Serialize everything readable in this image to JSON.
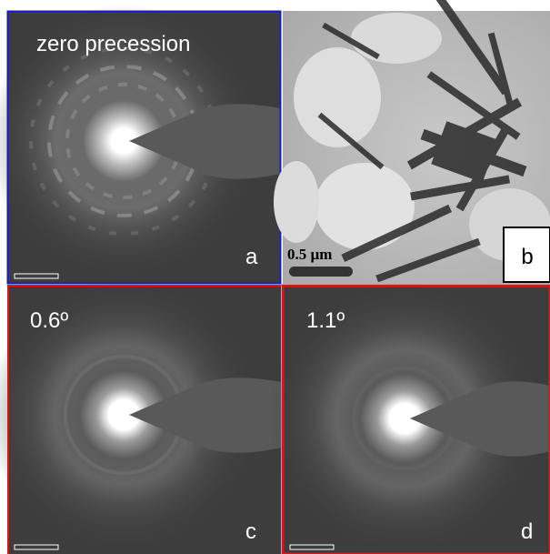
{
  "panels": [
    {
      "label": "a",
      "caption": "zero precession"
    },
    {
      "label": "b",
      "scale_bar": "0.5 µm"
    },
    {
      "label": "c",
      "caption": "0.6º"
    },
    {
      "label": "d",
      "caption": "1.1º"
    }
  ]
}
